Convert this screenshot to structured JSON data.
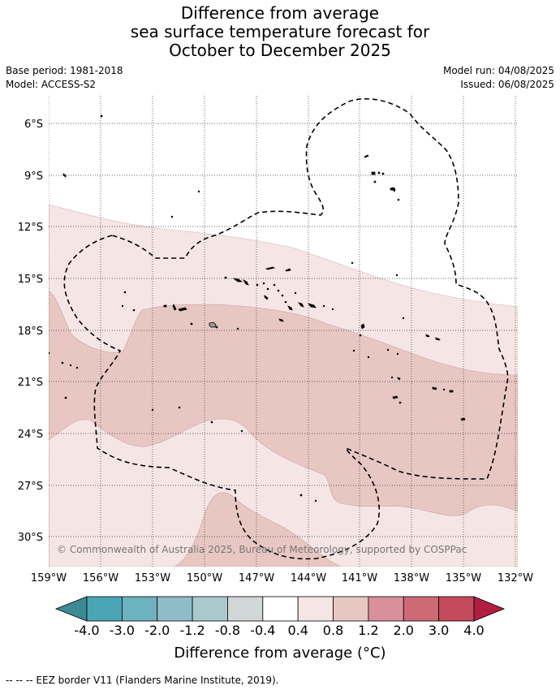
{
  "title": {
    "line1": "Difference from average",
    "line2": "sea surface temperature forecast for",
    "line3": "October to December 2025"
  },
  "meta": {
    "base_period": "Base period: 1981-2018",
    "model": "Model: ACCESS-S2",
    "model_run": "Model run: 04/08/2025",
    "issued": "Issued: 06/08/2025"
  },
  "axes": {
    "lat_labels": [
      "6°S",
      "9°S",
      "12°S",
      "15°S",
      "18°S",
      "21°S",
      "24°S",
      "27°S",
      "30°S"
    ],
    "lon_labels": [
      "159°W",
      "156°W",
      "153°W",
      "150°W",
      "147°W",
      "144°W",
      "141°W",
      "138°W",
      "135°W",
      "132°W"
    ]
  },
  "copyright": "© Commonwealth of Australia 2025, Bureau of Meteorology, supported by COSPPac",
  "colorbar": {
    "labels": [
      "-4.0",
      "-3.0",
      "-2.0",
      "-1.2",
      "-0.8",
      "-0.4",
      "0.4",
      "0.8",
      "1.2",
      "2.0",
      "3.0",
      "4.0"
    ],
    "colors": [
      "#3d8a95",
      "#4aa5b5",
      "#6eb2c0",
      "#8fbcc7",
      "#aac9cd",
      "#d1d6d7",
      "#ffffff",
      "#f5e6e5",
      "#e8c7c3",
      "#d8909a",
      "#cd6a76",
      "#c34b5b",
      "#b11e3f"
    ],
    "title": "Difference from average (°C)"
  },
  "footer": "--  --  -- EEZ border V11 (Flanders Marine Institute, 2019)."
}
